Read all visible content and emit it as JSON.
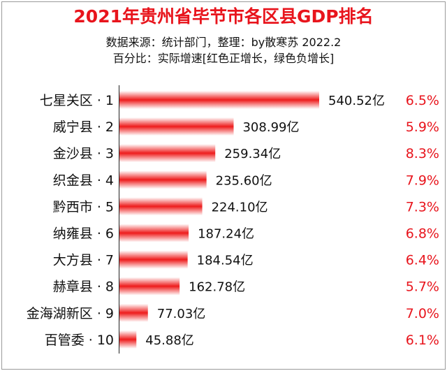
{
  "title": "2021年贵州省毕节市各区县GDP排名",
  "subtitle1": "数据来源：统计部门，整理：by散寒苏  2022.2",
  "subtitle2": "百分比：实际增速[红色正增长，绿色负增长]",
  "colors": {
    "title": "#e8141c",
    "bar": "#ee1c1c",
    "growth": "#e8141c"
  },
  "chart_data": {
    "type": "bar",
    "orientation": "horizontal",
    "categories": [
      "七星关区 · 1",
      "威宁县 · 2",
      "金沙县 · 3",
      "织金县 · 4",
      "黔西市 · 5",
      "纳雍县 · 6",
      "大方县 · 7",
      "赫章县 · 8",
      "金海湖新区 · 9",
      "百管委 · 10"
    ],
    "values": [
      540.52,
      308.99,
      259.34,
      235.6,
      224.1,
      187.24,
      184.54,
      162.78,
      77.03,
      45.88
    ],
    "value_labels": [
      "540.52亿",
      "308.99亿",
      "259.34亿",
      "235.60亿",
      "224.10亿",
      "187.24亿",
      "184.54亿",
      "162.78亿",
      "77.03亿",
      "45.88亿"
    ],
    "growth": [
      "6.5%",
      "5.9%",
      "8.3%",
      "7.9%",
      "7.3%",
      "6.8%",
      "6.4%",
      "5.7%",
      "7.0%",
      "6.1%"
    ],
    "title": "2021年贵州省毕节市各区县GDP排名",
    "xlabel": "",
    "ylabel": "",
    "grid": false,
    "legend": "none"
  }
}
